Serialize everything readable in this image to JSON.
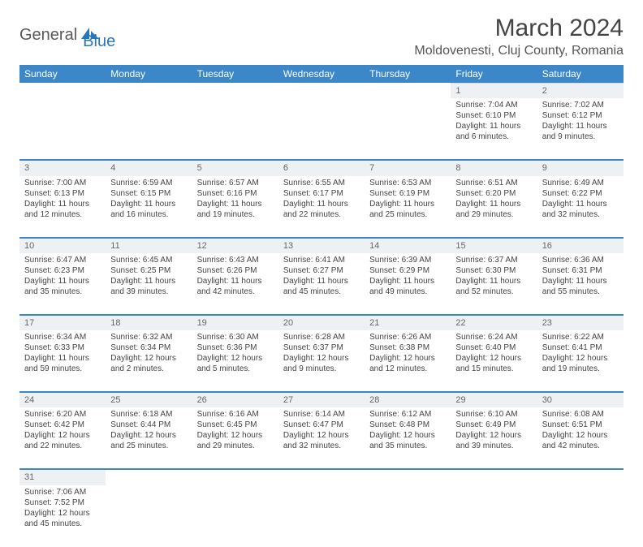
{
  "logo": {
    "part1": "General",
    "part2": "Blue"
  },
  "title": "March 2024",
  "location": "Moldovenesti, Cluj County, Romania",
  "colors": {
    "header_bg": "#3b87c8",
    "header_text": "#ffffff",
    "daynum_bg": "#eef1f3",
    "row_divider": "#3b87c8",
    "text": "#444444",
    "logo_dark": "#5a5a5a",
    "logo_blue": "#2976ba"
  },
  "weekdays": [
    "Sunday",
    "Monday",
    "Tuesday",
    "Wednesday",
    "Thursday",
    "Friday",
    "Saturday"
  ],
  "weeks": [
    [
      null,
      null,
      null,
      null,
      null,
      {
        "d": "1",
        "sr": "Sunrise: 7:04 AM",
        "ss": "Sunset: 6:10 PM",
        "dl": "Daylight: 11 hours and 6 minutes."
      },
      {
        "d": "2",
        "sr": "Sunrise: 7:02 AM",
        "ss": "Sunset: 6:12 PM",
        "dl": "Daylight: 11 hours and 9 minutes."
      }
    ],
    [
      {
        "d": "3",
        "sr": "Sunrise: 7:00 AM",
        "ss": "Sunset: 6:13 PM",
        "dl": "Daylight: 11 hours and 12 minutes."
      },
      {
        "d": "4",
        "sr": "Sunrise: 6:59 AM",
        "ss": "Sunset: 6:15 PM",
        "dl": "Daylight: 11 hours and 16 minutes."
      },
      {
        "d": "5",
        "sr": "Sunrise: 6:57 AM",
        "ss": "Sunset: 6:16 PM",
        "dl": "Daylight: 11 hours and 19 minutes."
      },
      {
        "d": "6",
        "sr": "Sunrise: 6:55 AM",
        "ss": "Sunset: 6:17 PM",
        "dl": "Daylight: 11 hours and 22 minutes."
      },
      {
        "d": "7",
        "sr": "Sunrise: 6:53 AM",
        "ss": "Sunset: 6:19 PM",
        "dl": "Daylight: 11 hours and 25 minutes."
      },
      {
        "d": "8",
        "sr": "Sunrise: 6:51 AM",
        "ss": "Sunset: 6:20 PM",
        "dl": "Daylight: 11 hours and 29 minutes."
      },
      {
        "d": "9",
        "sr": "Sunrise: 6:49 AM",
        "ss": "Sunset: 6:22 PM",
        "dl": "Daylight: 11 hours and 32 minutes."
      }
    ],
    [
      {
        "d": "10",
        "sr": "Sunrise: 6:47 AM",
        "ss": "Sunset: 6:23 PM",
        "dl": "Daylight: 11 hours and 35 minutes."
      },
      {
        "d": "11",
        "sr": "Sunrise: 6:45 AM",
        "ss": "Sunset: 6:25 PM",
        "dl": "Daylight: 11 hours and 39 minutes."
      },
      {
        "d": "12",
        "sr": "Sunrise: 6:43 AM",
        "ss": "Sunset: 6:26 PM",
        "dl": "Daylight: 11 hours and 42 minutes."
      },
      {
        "d": "13",
        "sr": "Sunrise: 6:41 AM",
        "ss": "Sunset: 6:27 PM",
        "dl": "Daylight: 11 hours and 45 minutes."
      },
      {
        "d": "14",
        "sr": "Sunrise: 6:39 AM",
        "ss": "Sunset: 6:29 PM",
        "dl": "Daylight: 11 hours and 49 minutes."
      },
      {
        "d": "15",
        "sr": "Sunrise: 6:37 AM",
        "ss": "Sunset: 6:30 PM",
        "dl": "Daylight: 11 hours and 52 minutes."
      },
      {
        "d": "16",
        "sr": "Sunrise: 6:36 AM",
        "ss": "Sunset: 6:31 PM",
        "dl": "Daylight: 11 hours and 55 minutes."
      }
    ],
    [
      {
        "d": "17",
        "sr": "Sunrise: 6:34 AM",
        "ss": "Sunset: 6:33 PM",
        "dl": "Daylight: 11 hours and 59 minutes."
      },
      {
        "d": "18",
        "sr": "Sunrise: 6:32 AM",
        "ss": "Sunset: 6:34 PM",
        "dl": "Daylight: 12 hours and 2 minutes."
      },
      {
        "d": "19",
        "sr": "Sunrise: 6:30 AM",
        "ss": "Sunset: 6:36 PM",
        "dl": "Daylight: 12 hours and 5 minutes."
      },
      {
        "d": "20",
        "sr": "Sunrise: 6:28 AM",
        "ss": "Sunset: 6:37 PM",
        "dl": "Daylight: 12 hours and 9 minutes."
      },
      {
        "d": "21",
        "sr": "Sunrise: 6:26 AM",
        "ss": "Sunset: 6:38 PM",
        "dl": "Daylight: 12 hours and 12 minutes."
      },
      {
        "d": "22",
        "sr": "Sunrise: 6:24 AM",
        "ss": "Sunset: 6:40 PM",
        "dl": "Daylight: 12 hours and 15 minutes."
      },
      {
        "d": "23",
        "sr": "Sunrise: 6:22 AM",
        "ss": "Sunset: 6:41 PM",
        "dl": "Daylight: 12 hours and 19 minutes."
      }
    ],
    [
      {
        "d": "24",
        "sr": "Sunrise: 6:20 AM",
        "ss": "Sunset: 6:42 PM",
        "dl": "Daylight: 12 hours and 22 minutes."
      },
      {
        "d": "25",
        "sr": "Sunrise: 6:18 AM",
        "ss": "Sunset: 6:44 PM",
        "dl": "Daylight: 12 hours and 25 minutes."
      },
      {
        "d": "26",
        "sr": "Sunrise: 6:16 AM",
        "ss": "Sunset: 6:45 PM",
        "dl": "Daylight: 12 hours and 29 minutes."
      },
      {
        "d": "27",
        "sr": "Sunrise: 6:14 AM",
        "ss": "Sunset: 6:47 PM",
        "dl": "Daylight: 12 hours and 32 minutes."
      },
      {
        "d": "28",
        "sr": "Sunrise: 6:12 AM",
        "ss": "Sunset: 6:48 PM",
        "dl": "Daylight: 12 hours and 35 minutes."
      },
      {
        "d": "29",
        "sr": "Sunrise: 6:10 AM",
        "ss": "Sunset: 6:49 PM",
        "dl": "Daylight: 12 hours and 39 minutes."
      },
      {
        "d": "30",
        "sr": "Sunrise: 6:08 AM",
        "ss": "Sunset: 6:51 PM",
        "dl": "Daylight: 12 hours and 42 minutes."
      }
    ],
    [
      {
        "d": "31",
        "sr": "Sunrise: 7:06 AM",
        "ss": "Sunset: 7:52 PM",
        "dl": "Daylight: 12 hours and 45 minutes."
      },
      null,
      null,
      null,
      null,
      null,
      null
    ]
  ]
}
